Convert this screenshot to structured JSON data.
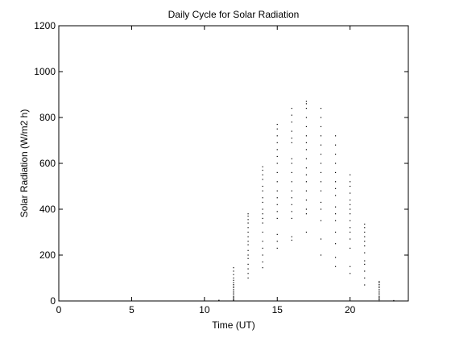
{
  "chart_data": {
    "type": "scatter",
    "title": "Daily Cycle for Solar Radiation",
    "xlabel": "Time (UT)",
    "ylabel": "Solar Radiation (W/m2 h)",
    "xlim": [
      0,
      24
    ],
    "ylim": [
      0,
      1200
    ],
    "xticks": [
      0,
      5,
      10,
      15,
      20
    ],
    "yticks": [
      0,
      200,
      400,
      600,
      800,
      1000,
      1200
    ],
    "grid": false,
    "legend": "none",
    "marker_color": "#000000",
    "series": [
      {
        "points": [
          [
            11,
            2
          ],
          [
            11,
            1
          ],
          [
            11,
            3
          ],
          [
            12,
            2
          ],
          [
            12,
            5
          ],
          [
            12,
            10
          ],
          [
            12,
            15
          ],
          [
            12,
            20
          ],
          [
            12,
            28
          ],
          [
            12,
            35
          ],
          [
            12,
            42
          ],
          [
            12,
            50
          ],
          [
            12,
            58
          ],
          [
            12,
            65
          ],
          [
            12,
            72
          ],
          [
            12,
            80
          ],
          [
            12,
            90
          ],
          [
            12,
            100
          ],
          [
            12,
            115
          ],
          [
            12,
            130
          ],
          [
            12,
            145
          ],
          [
            13,
            100
          ],
          [
            13,
            120
          ],
          [
            13,
            140
          ],
          [
            13,
            160
          ],
          [
            13,
            185
          ],
          [
            13,
            200
          ],
          [
            13,
            220
          ],
          [
            13,
            245
          ],
          [
            13,
            260
          ],
          [
            13,
            280
          ],
          [
            13,
            300
          ],
          [
            13,
            320
          ],
          [
            13,
            340
          ],
          [
            13,
            355
          ],
          [
            13,
            370
          ],
          [
            13,
            380
          ],
          [
            14,
            145
          ],
          [
            14,
            170
          ],
          [
            14,
            200
          ],
          [
            14,
            230
          ],
          [
            14,
            260
          ],
          [
            14,
            300
          ],
          [
            14,
            340
          ],
          [
            14,
            360
          ],
          [
            14,
            380
          ],
          [
            14,
            400
          ],
          [
            14,
            430
          ],
          [
            14,
            450
          ],
          [
            14,
            480
          ],
          [
            14,
            500
          ],
          [
            14,
            530
          ],
          [
            14,
            550
          ],
          [
            14,
            570
          ],
          [
            14,
            585
          ],
          [
            15,
            230
          ],
          [
            15,
            260
          ],
          [
            15,
            290
          ],
          [
            15,
            360
          ],
          [
            15,
            390
          ],
          [
            15,
            420
          ],
          [
            15,
            450
          ],
          [
            15,
            480
          ],
          [
            15,
            520
          ],
          [
            15,
            560
          ],
          [
            15,
            600
          ],
          [
            15,
            630
          ],
          [
            15,
            660
          ],
          [
            15,
            690
          ],
          [
            15,
            720
          ],
          [
            15,
            750
          ],
          [
            15,
            770
          ],
          [
            16,
            265
          ],
          [
            16,
            280
          ],
          [
            16,
            360
          ],
          [
            16,
            390
          ],
          [
            16,
            420
          ],
          [
            16,
            450
          ],
          [
            16,
            480
          ],
          [
            16,
            520
          ],
          [
            16,
            560
          ],
          [
            16,
            600
          ],
          [
            16,
            620
          ],
          [
            16,
            690
          ],
          [
            16,
            710
          ],
          [
            16,
            740
          ],
          [
            16,
            780
          ],
          [
            16,
            810
          ],
          [
            16,
            840
          ],
          [
            17,
            300
          ],
          [
            17,
            380
          ],
          [
            17,
            400
          ],
          [
            17,
            440
          ],
          [
            17,
            480
          ],
          [
            17,
            520
          ],
          [
            17,
            550
          ],
          [
            17,
            580
          ],
          [
            17,
            620
          ],
          [
            17,
            660
          ],
          [
            17,
            690
          ],
          [
            17,
            720
          ],
          [
            17,
            760
          ],
          [
            17,
            800
          ],
          [
            17,
            840
          ],
          [
            17,
            860
          ],
          [
            17,
            870
          ],
          [
            18,
            200
          ],
          [
            18,
            270
          ],
          [
            18,
            350
          ],
          [
            18,
            400
          ],
          [
            18,
            430
          ],
          [
            18,
            480
          ],
          [
            18,
            520
          ],
          [
            18,
            560
          ],
          [
            18,
            600
          ],
          [
            18,
            640
          ],
          [
            18,
            680
          ],
          [
            18,
            720
          ],
          [
            18,
            760
          ],
          [
            18,
            800
          ],
          [
            18,
            840
          ],
          [
            19,
            150
          ],
          [
            19,
            190
          ],
          [
            19,
            250
          ],
          [
            19,
            300
          ],
          [
            19,
            350
          ],
          [
            19,
            380
          ],
          [
            19,
            410
          ],
          [
            19,
            460
          ],
          [
            19,
            490
          ],
          [
            19,
            520
          ],
          [
            19,
            560
          ],
          [
            19,
            600
          ],
          [
            19,
            640
          ],
          [
            19,
            680
          ],
          [
            19,
            720
          ],
          [
            20,
            120
          ],
          [
            20,
            150
          ],
          [
            20,
            230
          ],
          [
            20,
            270
          ],
          [
            20,
            300
          ],
          [
            20,
            320
          ],
          [
            20,
            350
          ],
          [
            20,
            380
          ],
          [
            20,
            400
          ],
          [
            20,
            420
          ],
          [
            20,
            440
          ],
          [
            20,
            470
          ],
          [
            20,
            500
          ],
          [
            20,
            520
          ],
          [
            20,
            550
          ],
          [
            21,
            70
          ],
          [
            21,
            100
          ],
          [
            21,
            130
          ],
          [
            21,
            160
          ],
          [
            21,
            175
          ],
          [
            21,
            210
          ],
          [
            21,
            240
          ],
          [
            21,
            260
          ],
          [
            21,
            280
          ],
          [
            21,
            300
          ],
          [
            21,
            320
          ],
          [
            21,
            335
          ],
          [
            22,
            0
          ],
          [
            22,
            5
          ],
          [
            22,
            10
          ],
          [
            22,
            15
          ],
          [
            22,
            20
          ],
          [
            22,
            28
          ],
          [
            22,
            35
          ],
          [
            22,
            42
          ],
          [
            22,
            50
          ],
          [
            22,
            58
          ],
          [
            22,
            65
          ],
          [
            22,
            72
          ],
          [
            22,
            80
          ],
          [
            22,
            85
          ],
          [
            23,
            0
          ],
          [
            23,
            2
          ]
        ]
      }
    ]
  }
}
